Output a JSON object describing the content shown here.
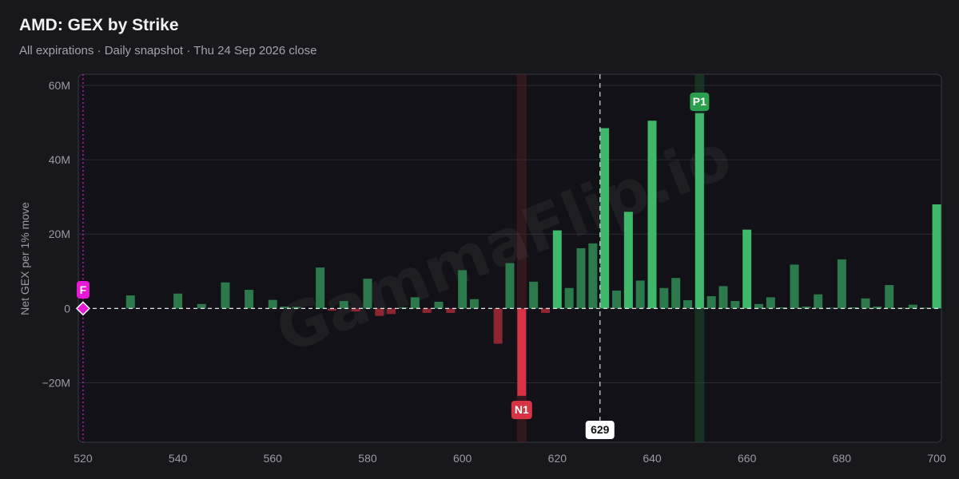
{
  "header": {
    "title": "AMD: GEX by Strike",
    "subtitle": "All expirations · Daily snapshot · Thu 24 Sep 2026 close"
  },
  "watermark": "GammaFlip.io",
  "colors": {
    "background": "#17171c",
    "plot_bg": "#111117",
    "positive": "#3fb86b",
    "positive_dim": "#2c7a4c",
    "negative": "#d63343",
    "negative_dim": "#8e2632",
    "flip_marker": "#e619d6",
    "p1_badge": "#2a9f4c",
    "n1_badge": "#d63343"
  },
  "chart_data": {
    "type": "bar",
    "title": "AMD: GEX by Strike",
    "ylabel": "Net GEX per 1% move",
    "xlabel": "",
    "xlim": [
      519,
      701
    ],
    "ylim": [
      -36,
      63
    ],
    "x_ticks": [
      520,
      540,
      560,
      580,
      600,
      620,
      640,
      660,
      680,
      700
    ],
    "y_ticks": [
      60,
      40,
      20,
      0,
      -20
    ],
    "y_tick_labels": [
      "60M",
      "40M",
      "20M",
      "0",
      "−20M"
    ],
    "units": "M",
    "grid": true,
    "strikes": [
      520,
      530,
      540,
      545,
      550,
      555,
      560,
      562.5,
      565,
      570,
      572.5,
      575,
      577.5,
      580,
      582.5,
      585,
      587.5,
      590,
      592.5,
      595,
      597.5,
      600,
      602.5,
      607.5,
      610,
      612.5,
      615,
      617.5,
      620,
      622.5,
      625,
      627.5,
      630,
      632.5,
      635,
      637.5,
      640,
      642.5,
      645,
      647.5,
      650,
      652.5,
      655,
      657.5,
      660,
      662.5,
      665,
      667.5,
      670,
      672.5,
      675,
      677.5,
      680,
      682.5,
      685,
      687.5,
      690,
      692.5,
      695,
      697.5,
      700
    ],
    "values": [
      0.3,
      3.5,
      4.0,
      1.2,
      7.0,
      5.0,
      2.3,
      0.5,
      0.4,
      11.0,
      -0.6,
      2.0,
      -0.8,
      8.0,
      -2.0,
      -1.5,
      0.3,
      3.0,
      -1.2,
      1.8,
      -1.2,
      10.3,
      2.5,
      -9.5,
      12.2,
      -23.5,
      7.2,
      -1.2,
      21.0,
      5.5,
      16.2,
      17.5,
      48.5,
      4.8,
      26.0,
      7.5,
      50.5,
      5.5,
      8.2,
      2.2,
      52.5,
      3.3,
      6.0,
      2.0,
      21.2,
      1.2,
      3.0,
      0.3,
      11.8,
      0.5,
      3.8,
      0.2,
      13.2,
      0.3,
      2.7,
      0.5,
      6.3,
      0.2,
      1.0,
      0.2,
      28.0
    ],
    "highlighted": [
      650,
      612.5,
      630,
      640,
      700,
      635
    ],
    "markers": {
      "flip": {
        "label": "F",
        "x": 520,
        "y": 0
      },
      "positive_peak": {
        "label": "P1",
        "x": 650
      },
      "negative_peak": {
        "label": "N1",
        "x": 612.5
      },
      "spot": {
        "label": "629",
        "x": 629
      }
    }
  }
}
